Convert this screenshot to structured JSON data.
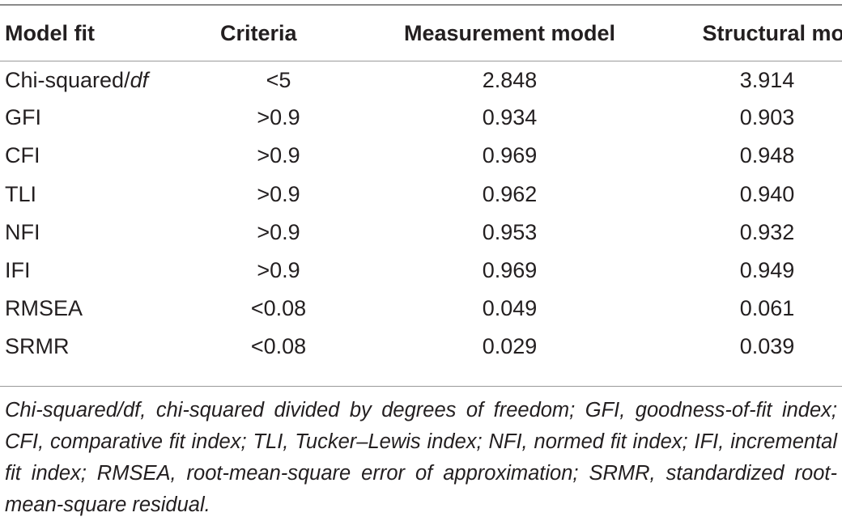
{
  "table": {
    "headers": [
      "Model fit",
      "Criteria",
      "Measurement model",
      "Structural model"
    ],
    "rows": [
      {
        "model_fit": "Chi-squared/",
        "model_fit_italic": "df",
        "criteria": "<5",
        "measurement": "2.848",
        "structural": "3.914"
      },
      {
        "model_fit": "GFI",
        "model_fit_italic": "",
        "criteria": ">0.9",
        "measurement": "0.934",
        "structural": "0.903"
      },
      {
        "model_fit": "CFI",
        "model_fit_italic": "",
        "criteria": ">0.9",
        "measurement": "0.969",
        "structural": "0.948"
      },
      {
        "model_fit": "TLI",
        "model_fit_italic": "",
        "criteria": ">0.9",
        "measurement": "0.962",
        "structural": "0.940"
      },
      {
        "model_fit": "NFI",
        "model_fit_italic": "",
        "criteria": ">0.9",
        "measurement": "0.953",
        "structural": "0.932"
      },
      {
        "model_fit": "IFI",
        "model_fit_italic": "",
        "criteria": ">0.9",
        "measurement": "0.969",
        "structural": "0.949"
      },
      {
        "model_fit": "RMSEA",
        "model_fit_italic": "",
        "criteria": "<0.08",
        "measurement": "0.049",
        "structural": "0.061"
      },
      {
        "model_fit": "SRMR",
        "model_fit_italic": "",
        "criteria": "<0.08",
        "measurement": "0.029",
        "structural": "0.039"
      }
    ]
  },
  "footnote": "Chi-squared/df, chi-squared divided by degrees of freedom; GFI, goodness-of-fit index; CFI, comparative fit index; TLI, Tucker–Lewis index; NFI, normed fit index; IFI, incremental fit index; RMSEA, root-mean-square error of approximation; SRMR, standardized root-mean-square residual."
}
